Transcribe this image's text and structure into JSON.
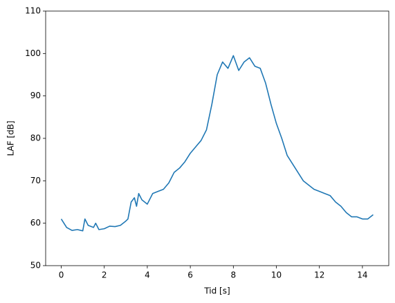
{
  "chart_data": {
    "type": "line",
    "x_label": "Tid [s]",
    "y_label": "LAF [dB]",
    "x": [
      0,
      0.25,
      0.5,
      0.75,
      1.0,
      1.1,
      1.25,
      1.5,
      1.6,
      1.75,
      2.0,
      2.25,
      2.5,
      2.75,
      3.0,
      3.1,
      3.25,
      3.4,
      3.5,
      3.6,
      3.75,
      4.0,
      4.25,
      4.5,
      4.75,
      5.0,
      5.25,
      5.5,
      5.75,
      6.0,
      6.25,
      6.5,
      6.75,
      7.0,
      7.25,
      7.5,
      7.75,
      8.0,
      8.25,
      8.5,
      8.75,
      9.0,
      9.25,
      9.5,
      9.75,
      10.0,
      10.25,
      10.5,
      10.75,
      11.0,
      11.25,
      11.5,
      11.75,
      12.0,
      12.25,
      12.5,
      12.75,
      13.0,
      13.25,
      13.5,
      13.75,
      14.0,
      14.25,
      14.5
    ],
    "values": [
      61,
      59,
      58.3,
      58.5,
      58.2,
      61,
      59.5,
      59,
      60,
      58.5,
      58.7,
      59.3,
      59.2,
      59.5,
      60.5,
      61,
      65,
      66,
      64,
      67,
      65.5,
      64.5,
      67,
      67.5,
      68,
      69.5,
      72,
      73,
      74.5,
      76.5,
      78,
      79.5,
      82,
      88,
      95,
      98,
      96.5,
      99.5,
      96,
      98,
      99,
      97,
      96.5,
      93,
      88,
      83.5,
      80,
      76,
      74,
      72,
      70,
      69,
      68,
      67.5,
      67,
      66.5,
      65,
      64,
      62.5,
      61.5,
      61.5,
      61,
      61,
      62
    ],
    "color": "#1f77b4",
    "xlim": [
      -0.725,
      15.225
    ],
    "xticks": [
      0,
      2,
      4,
      6,
      8,
      10,
      12,
      14
    ],
    "ylim": [
      50,
      110
    ],
    "yticks": [
      50,
      60,
      70,
      80,
      90,
      100,
      110
    ],
    "grid": false
  }
}
